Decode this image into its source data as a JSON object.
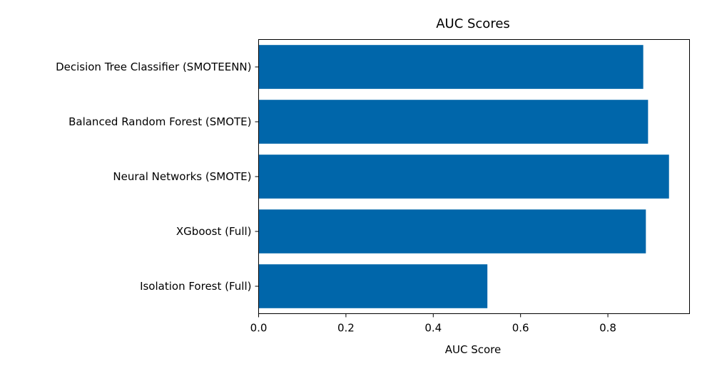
{
  "chart_data": {
    "type": "bar",
    "orientation": "horizontal",
    "title": "AUC Scores",
    "xlabel": "AUC Score",
    "ylabel": "",
    "categories": [
      "Decision Tree Classifier (SMOTEENN)",
      "Balanced Random Forest (SMOTE)",
      "Neural Networks (SMOTE)",
      "XGboost (Full)",
      "Isolation Forest (Full)"
    ],
    "values": [
      0.881,
      0.892,
      0.94,
      0.887,
      0.524
    ],
    "xlim": [
      0,
      0.987
    ],
    "xticks": [
      0.0,
      0.2,
      0.4,
      0.6,
      0.8
    ],
    "xtick_labels": [
      "0.0",
      "0.2",
      "0.4",
      "0.6",
      "0.8"
    ],
    "grid": false,
    "legend": false,
    "bar_color": "#0066aa"
  }
}
